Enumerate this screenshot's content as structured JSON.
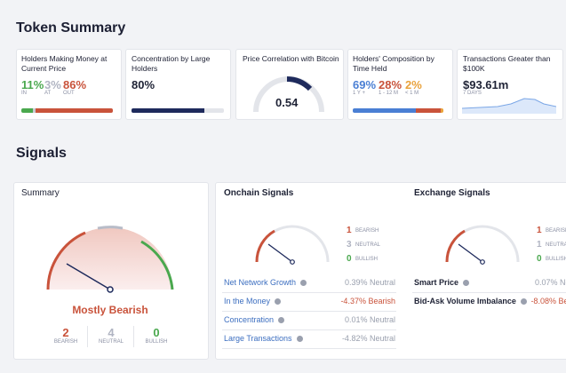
{
  "header": {
    "title": "Token Summary"
  },
  "cards": [
    {
      "title": "Holders Making Money at Current Price",
      "stats": [
        {
          "value": "11%",
          "label": "IN"
        },
        {
          "value": "3%",
          "label": "AT"
        },
        {
          "value": "86%",
          "label": "OUT"
        }
      ]
    },
    {
      "title": "Concentration by Large Holders",
      "value": "80%"
    },
    {
      "title": "Price Correlation with Bitcoin",
      "value": "0.54"
    },
    {
      "title": "Holders' Composition by Time Held",
      "stats": [
        {
          "value": "69%",
          "label": "1 Y +"
        },
        {
          "value": "28%",
          "label": "1 - 12 M"
        },
        {
          "value": "2%",
          "label": "< 1 M"
        }
      ]
    },
    {
      "title": "Transactions Greater than $100K",
      "value": "$93.61m",
      "sub": "7 DAYS"
    }
  ],
  "signals": {
    "title": "Signals",
    "summary": {
      "title": "Summary",
      "verdict": "Mostly Bearish",
      "counts": [
        {
          "value": "2",
          "label": "BEARISH"
        },
        {
          "value": "4",
          "label": "NEUTRAL"
        },
        {
          "value": "0",
          "label": "BULLISH"
        }
      ]
    },
    "onchain": {
      "title": "Onchain Signals",
      "counts": [
        {
          "value": "1",
          "label": "BEARISH"
        },
        {
          "value": "3",
          "label": "NEUTRAL"
        },
        {
          "value": "0",
          "label": "BULLISH"
        }
      ],
      "rows": [
        {
          "name": "Net Network Growth",
          "value": "0.39%",
          "status": "Neutral"
        },
        {
          "name": "In the Money",
          "value": "-4.37%",
          "status": "Bearish"
        },
        {
          "name": "Concentration",
          "value": "0.01%",
          "status": "Neutral"
        },
        {
          "name": "Large Transactions",
          "value": "-4.82%",
          "status": "Neutral"
        }
      ]
    },
    "exchange": {
      "title": "Exchange Signals",
      "counts": [
        {
          "value": "1",
          "label": "BEARISH"
        },
        {
          "value": "1",
          "label": "NEUTRAL"
        },
        {
          "value": "0",
          "label": "BULLISH"
        }
      ],
      "rows": [
        {
          "name": "Smart Price",
          "value": "0.07%",
          "status": "Neutral"
        },
        {
          "name": "Bid-Ask Volume Imbalance",
          "value": "-8.08%",
          "status": "Bearish"
        }
      ]
    }
  }
}
